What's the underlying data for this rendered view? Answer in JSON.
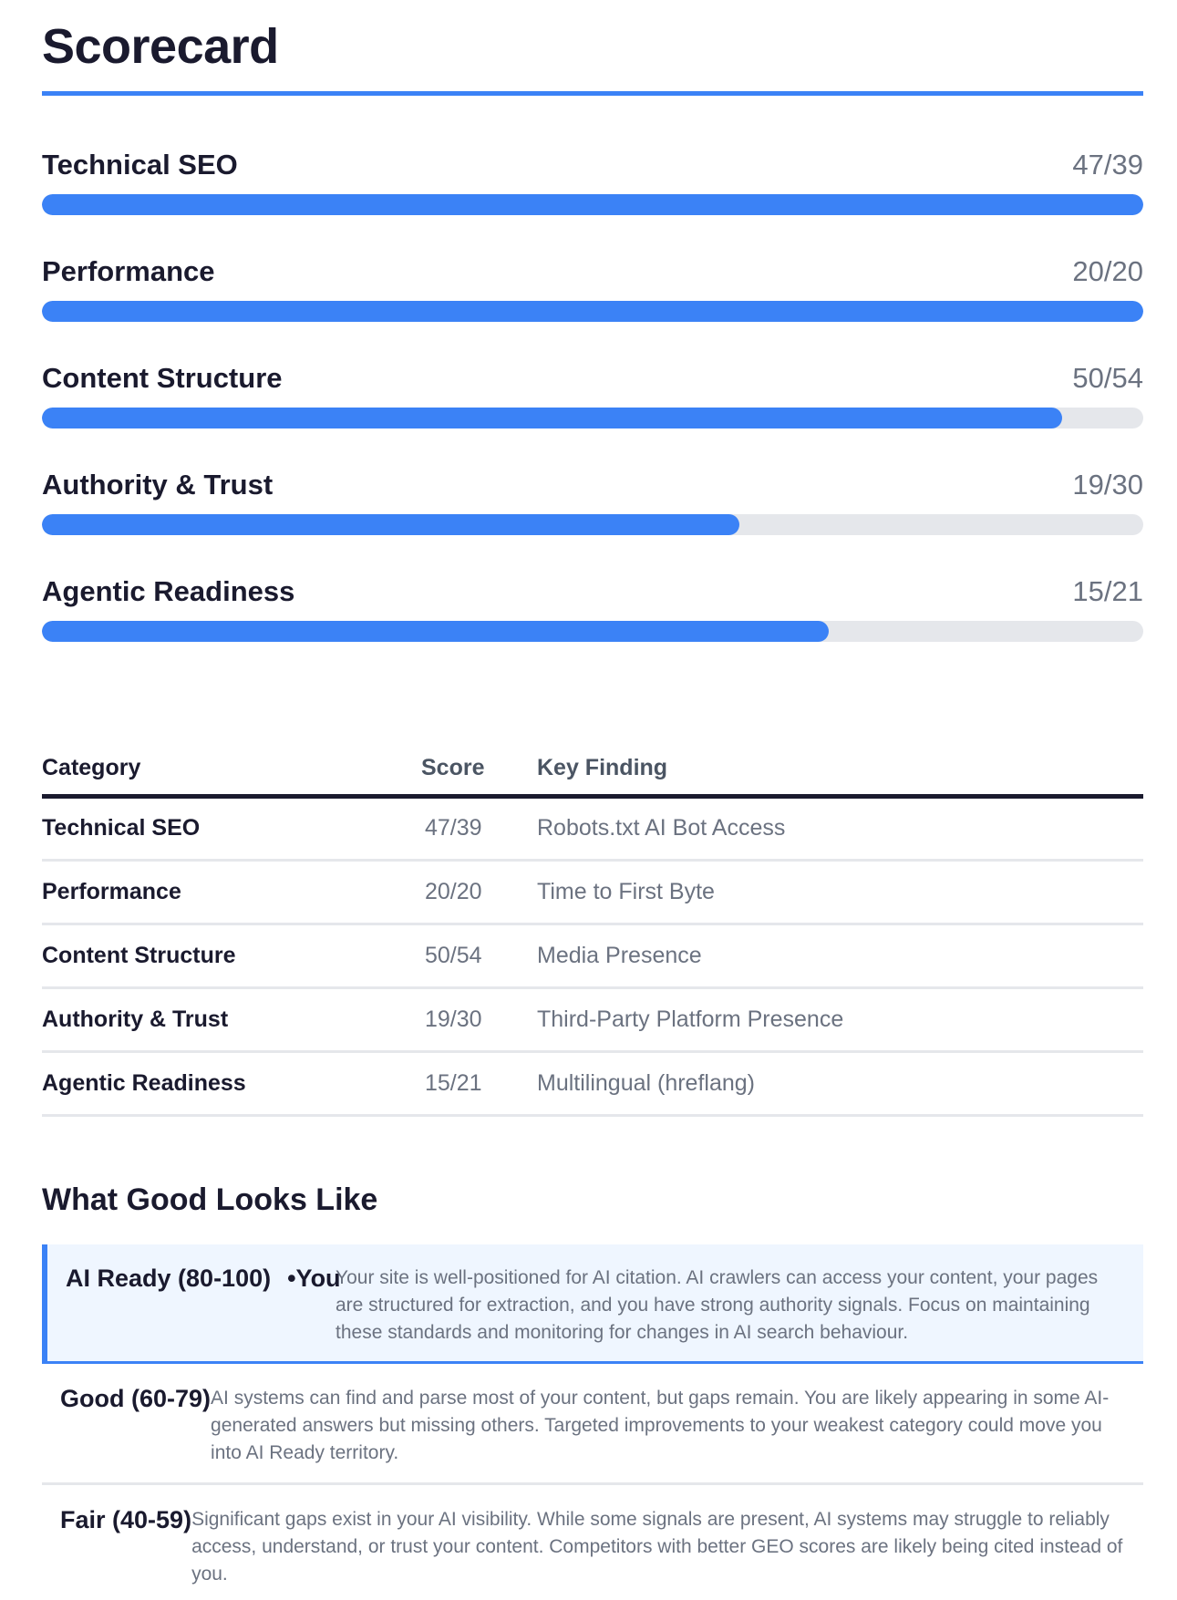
{
  "title": "Scorecard",
  "categories": [
    {
      "label": "Technical SEO",
      "score": "47/39",
      "progress": 1.0
    },
    {
      "label": "Performance",
      "score": "20/20",
      "progress": 1.0
    },
    {
      "label": "Content Structure",
      "score": "50/54",
      "progress": 0.926
    },
    {
      "label": "Authority & Trust",
      "score": "19/30",
      "progress": 0.633
    },
    {
      "label": "Agentic Readiness",
      "score": "15/21",
      "progress": 0.714
    }
  ],
  "table": {
    "headers": [
      "Category",
      "Score",
      "Key Finding"
    ],
    "rows": [
      [
        "Technical SEO",
        "47/39",
        "Robots.txt AI Bot Access"
      ],
      [
        "Performance",
        "20/20",
        "Time to First Byte"
      ],
      [
        "Content Structure",
        "50/54",
        "Media Presence"
      ],
      [
        "Authority & Trust",
        "19/30",
        "Third-Party Platform Presence"
      ],
      [
        "Agentic Readiness",
        "15/21",
        "Multilingual (hreflang)"
      ]
    ]
  },
  "good": {
    "heading": "What Good Looks Like",
    "tiers": [
      {
        "name": "AI Ready (80-100)",
        "badge": "•You",
        "desc": "Your site is well-positioned for AI citation. AI crawlers can access your content, your pages are structured for extraction, and you have strong authority signals. Focus on maintaining these standards and monitoring for changes in AI search behaviour."
      },
      {
        "name": "Good (60-79)",
        "desc": "AI systems can find and parse most of your content, but gaps remain. You are likely appearing in some AI-generated answers but missing others. Targeted improvements to your weakest category could move you into AI Ready territory."
      },
      {
        "name": "Fair (40-59)",
        "desc": "Significant gaps exist in your AI visibility. While some signals are present, AI systems may struggle to reliably access, understand, or trust your content. Competitors with better GEO scores are likely being cited instead of you."
      }
    ]
  },
  "colors": {
    "accent": "#3b82f6",
    "track": "#e5e7eb"
  }
}
